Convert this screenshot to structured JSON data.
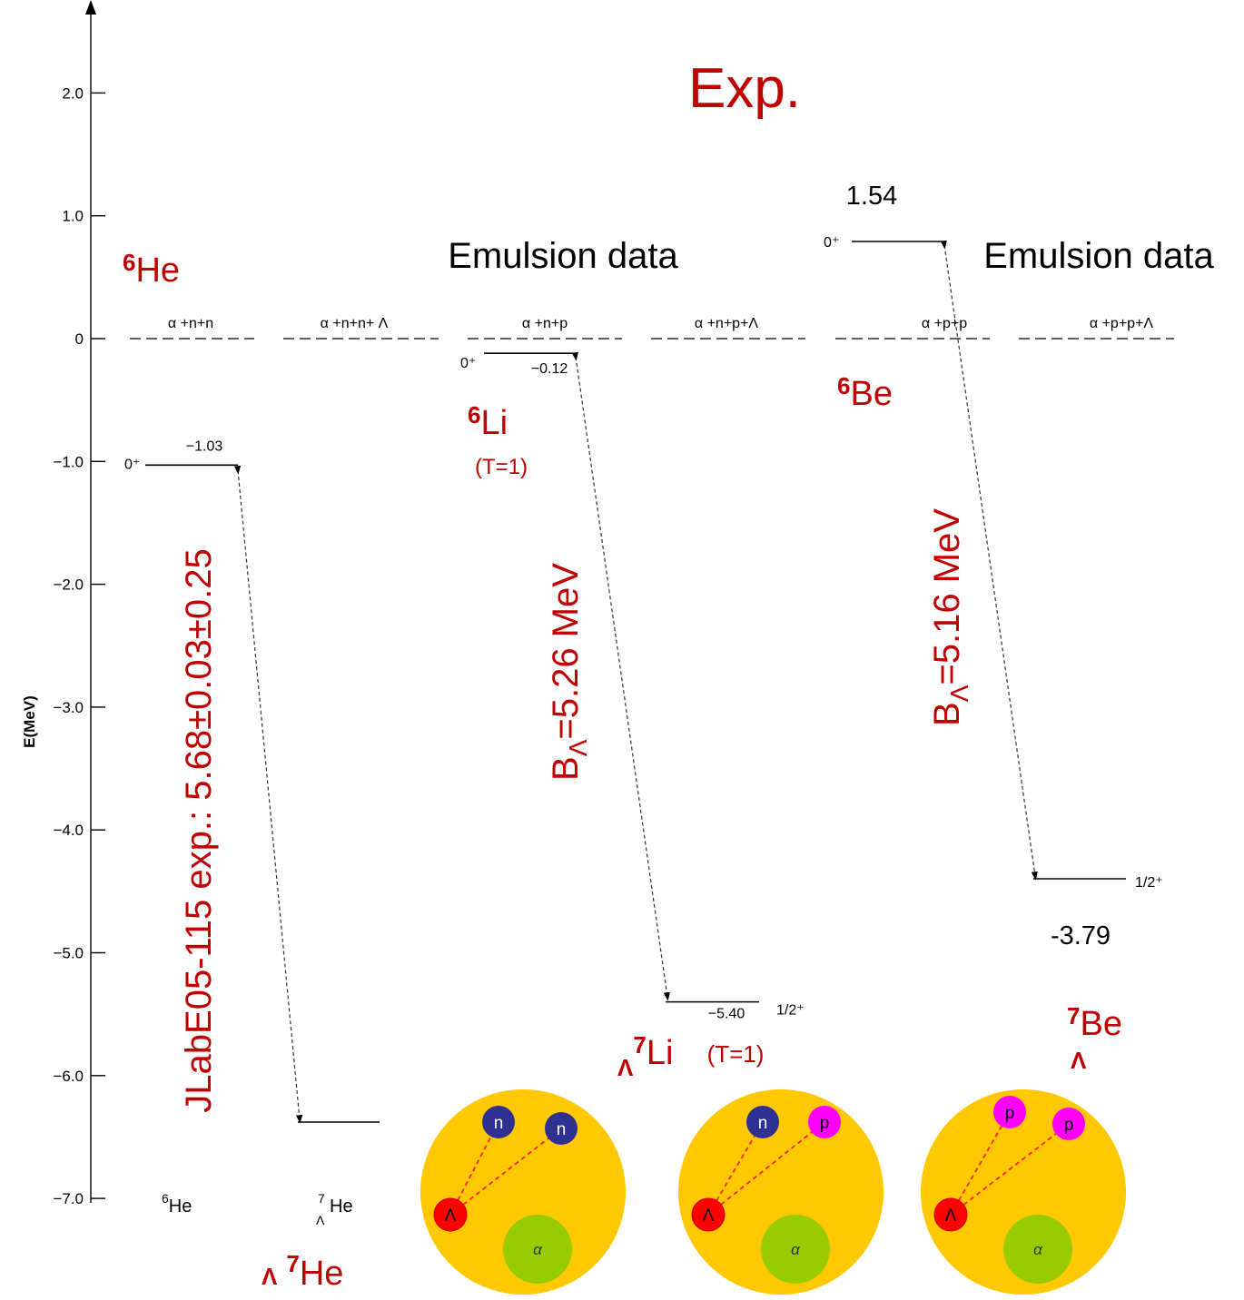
{
  "title": "Exp.",
  "annotations": {
    "top_value": "1.54",
    "emulsion_left": "Emulsion data",
    "emulsion_right": "Emulsion data",
    "be_value": "-3.79"
  },
  "axis": {
    "label": "E(MeV)",
    "ticks": [
      {
        "value": 2,
        "label": "2.0"
      },
      {
        "value": 1,
        "label": "1.0"
      },
      0,
      {
        "value": -1,
        "label": "−1.0"
      },
      {
        "value": -2,
        "label": "−2.0"
      },
      {
        "value": -3,
        "label": "−3.0"
      },
      {
        "value": -4,
        "label": "−4.0"
      },
      {
        "value": -5,
        "label": "−5.0"
      },
      {
        "value": -6,
        "label": "−6.0"
      },
      {
        "value": -7,
        "label": "−7.0"
      }
    ]
  },
  "channels": [
    "α +n+n",
    "α +n+n+ Λ",
    "α +n+p",
    "α +n+p+Λ",
    "α +p+p",
    "α +p+p+Λ"
  ],
  "levels": [
    {
      "spin": "0⁺",
      "energy": -1.03,
      "label": "−1.03"
    },
    {
      "spin": "0⁺",
      "energy": -0.12,
      "label": "−0.12"
    },
    {
      "spin": "1/2⁺",
      "energy": -5.4,
      "label": "−5.40"
    }
  ],
  "other_spins": {
    "be6": "0⁺",
    "be7": "1/2⁺"
  },
  "nuclei": {
    "he6": {
      "mass": "6",
      "symbol": "He"
    },
    "li6": {
      "mass": "6",
      "symbol": "Li",
      "note": "(T=1)"
    },
    "be6": {
      "mass": "6",
      "symbol": "Be"
    },
    "li7": {
      "hyperon": "Λ",
      "mass": "7",
      "symbol": "Li",
      "note": "(T=1)"
    },
    "be7": {
      "hyperon": "Λ",
      "mass": "7",
      "symbol": "Be"
    },
    "he7": {
      "hyperon": "Λ",
      "mass": "7",
      "symbol": "He"
    }
  },
  "bottom_labels": {
    "he6": {
      "mass": "6",
      "symbol": "He"
    },
    "he7": {
      "mass": "7",
      "hyperon": "Λ",
      "symbol": "He"
    }
  },
  "rotated": {
    "jlab": "JLabE05-115 exp.: 5.68±0.03±0.25",
    "li": {
      "b": "B",
      "sub": "Λ",
      "rest": "=5.26 MeV"
    },
    "be": {
      "b": "B",
      "sub": "Λ",
      "rest": "=5.16 MeV"
    }
  },
  "clusters": [
    {
      "particles": [
        "n",
        "n"
      ],
      "lambda": "Λ",
      "alpha": "α"
    },
    {
      "particles": [
        "n",
        "p"
      ],
      "lambda": "Λ",
      "alpha": "α"
    },
    {
      "particles": [
        "p",
        "p"
      ],
      "lambda": "Λ",
      "alpha": "α"
    }
  ]
}
